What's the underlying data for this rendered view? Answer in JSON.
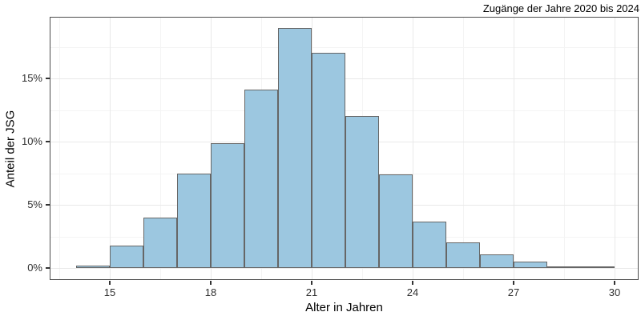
{
  "chart_data": {
    "type": "bar",
    "subtype": "histogram",
    "title": "Zugänge der Jahre 2020 bis 2024",
    "xlabel": "Alter in Jahren",
    "ylabel": "Anteil der JSG",
    "value_unit": "%",
    "bin_width_years": 1,
    "bin_starts": [
      14,
      15,
      16,
      17,
      18,
      19,
      20,
      21,
      22,
      23,
      24,
      25,
      26,
      27,
      28,
      29
    ],
    "values": [
      0.2,
      1.8,
      4.0,
      7.5,
      9.9,
      14.1,
      19.0,
      17.0,
      12.0,
      7.4,
      3.7,
      2.0,
      1.1,
      0.5,
      0.12,
      0.12
    ],
    "x_ticks": [
      15,
      18,
      21,
      24,
      27,
      30
    ],
    "x_minor_ticks": [
      13.5,
      16.5,
      19.5,
      22.5,
      25.5,
      28.5
    ],
    "y_ticks": [
      0,
      5,
      10,
      15
    ],
    "y_tick_labels": [
      "0%",
      "5%",
      "10%",
      "15%"
    ],
    "y_minor_ticks": [
      2.5,
      7.5,
      12.5,
      17.5
    ],
    "xlim": [
      13.2,
      30.7
    ],
    "ylim": [
      -0.9,
      19.9
    ],
    "grid": "major+minor",
    "legend": "none"
  },
  "colors": {
    "background": "#FFFFFF",
    "bar_fill": "#9CC7E0",
    "bar_border": "#666666",
    "grid_major": "#E9E9E9",
    "grid_minor": "#F4F4F4",
    "panel_border": "#4D4D4D",
    "tick_mark": "#333333",
    "axis_text": "#303030",
    "title_text": "#000000"
  }
}
